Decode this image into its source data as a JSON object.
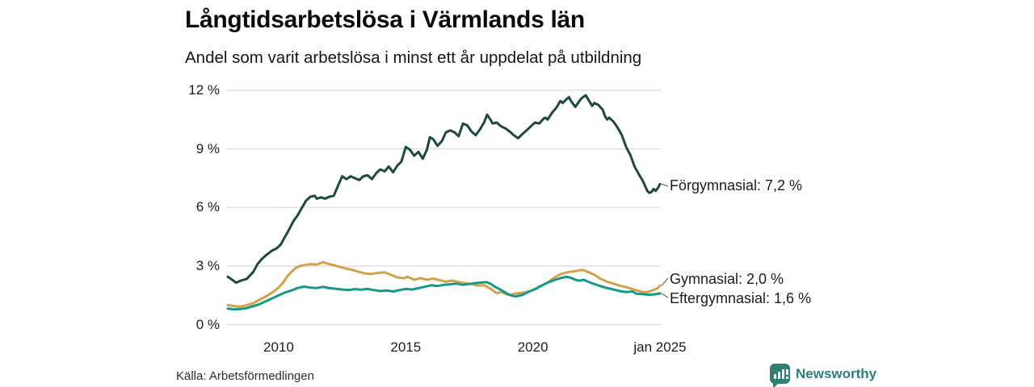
{
  "header": {
    "title": "Långtidsarbetslösa i Värmlands län",
    "subtitle": "Andel som varit arbetslösa i minst ett år uppdelat på utbildning"
  },
  "source": {
    "label": "Källa: Arbetsförmedlingen"
  },
  "branding": {
    "name": "Newsworthy",
    "color": "#2e7f74",
    "logo_icon": "bar-chart-speech-bubble-icon"
  },
  "chart_data": {
    "type": "line",
    "title": "Långtidsarbetslösa i Värmlands län",
    "subtitle": "Andel som varit arbetslösa i minst ett år uppdelat på utbildning",
    "xlabel": "",
    "ylabel": "",
    "xlim": [
      2008,
      2025
    ],
    "ylim": [
      0,
      12
    ],
    "grid": "horizontal-only",
    "gridline_color": "#e2e2e2",
    "legend_position": "end-of-line-labels-right",
    "x_ticks": [
      {
        "value": 2010,
        "label": "2010"
      },
      {
        "value": 2015,
        "label": "2015"
      },
      {
        "value": 2020,
        "label": "2020"
      },
      {
        "value": 2025,
        "label": "jan 2025"
      }
    ],
    "y_ticks": [
      {
        "value": 0,
        "label": "0 %"
      },
      {
        "value": 3,
        "label": "3 %"
      },
      {
        "value": 6,
        "label": "6 %"
      },
      {
        "value": 9,
        "label": "9 %"
      },
      {
        "value": 12,
        "label": "12 %"
      }
    ],
    "series": [
      {
        "name": "Förgymnasial",
        "label": "Förgymnasial: 7,2 %",
        "last_value": "7,2 %",
        "color": "#1e4a3b",
        "points": [
          [
            2008.0,
            2.45
          ],
          [
            2008.17,
            2.3
          ],
          [
            2008.33,
            2.15
          ],
          [
            2008.5,
            2.25
          ],
          [
            2008.75,
            2.35
          ],
          [
            2009.0,
            2.7
          ],
          [
            2009.17,
            3.1
          ],
          [
            2009.33,
            3.35
          ],
          [
            2009.5,
            3.55
          ],
          [
            2009.75,
            3.8
          ],
          [
            2009.92,
            3.9
          ],
          [
            2010.08,
            4.1
          ],
          [
            2010.25,
            4.5
          ],
          [
            2010.42,
            4.9
          ],
          [
            2010.58,
            5.3
          ],
          [
            2010.75,
            5.6
          ],
          [
            2010.92,
            6.0
          ],
          [
            2011.08,
            6.35
          ],
          [
            2011.25,
            6.55
          ],
          [
            2011.42,
            6.6
          ],
          [
            2011.5,
            6.45
          ],
          [
            2011.67,
            6.52
          ],
          [
            2011.83,
            6.45
          ],
          [
            2012.0,
            6.55
          ],
          [
            2012.17,
            6.6
          ],
          [
            2012.33,
            7.1
          ],
          [
            2012.5,
            7.6
          ],
          [
            2012.67,
            7.45
          ],
          [
            2012.83,
            7.6
          ],
          [
            2013.0,
            7.5
          ],
          [
            2013.17,
            7.4
          ],
          [
            2013.33,
            7.6
          ],
          [
            2013.5,
            7.65
          ],
          [
            2013.67,
            7.45
          ],
          [
            2013.83,
            7.75
          ],
          [
            2014.0,
            7.95
          ],
          [
            2014.17,
            7.85
          ],
          [
            2014.33,
            8.1
          ],
          [
            2014.5,
            7.8
          ],
          [
            2014.67,
            8.15
          ],
          [
            2014.83,
            8.35
          ],
          [
            2015.0,
            9.1
          ],
          [
            2015.17,
            8.95
          ],
          [
            2015.33,
            8.65
          ],
          [
            2015.5,
            8.85
          ],
          [
            2015.67,
            8.5
          ],
          [
            2015.83,
            8.95
          ],
          [
            2015.95,
            9.6
          ],
          [
            2016.08,
            9.5
          ],
          [
            2016.25,
            9.15
          ],
          [
            2016.42,
            9.4
          ],
          [
            2016.58,
            9.85
          ],
          [
            2016.75,
            9.95
          ],
          [
            2016.92,
            9.85
          ],
          [
            2017.08,
            9.65
          ],
          [
            2017.25,
            10.3
          ],
          [
            2017.42,
            10.2
          ],
          [
            2017.58,
            9.9
          ],
          [
            2017.75,
            9.7
          ],
          [
            2017.92,
            10.0
          ],
          [
            2018.08,
            10.35
          ],
          [
            2018.2,
            10.75
          ],
          [
            2018.33,
            10.5
          ],
          [
            2018.42,
            10.3
          ],
          [
            2018.58,
            10.35
          ],
          [
            2018.75,
            10.15
          ],
          [
            2018.92,
            10.05
          ],
          [
            2019.08,
            9.9
          ],
          [
            2019.25,
            9.7
          ],
          [
            2019.42,
            9.55
          ],
          [
            2019.58,
            9.75
          ],
          [
            2019.75,
            9.95
          ],
          [
            2019.92,
            10.15
          ],
          [
            2020.08,
            10.35
          ],
          [
            2020.25,
            10.3
          ],
          [
            2020.42,
            10.55
          ],
          [
            2020.5,
            10.6
          ],
          [
            2020.58,
            10.5
          ],
          [
            2020.75,
            10.85
          ],
          [
            2020.92,
            11.1
          ],
          [
            2021.08,
            11.45
          ],
          [
            2021.17,
            11.35
          ],
          [
            2021.33,
            11.55
          ],
          [
            2021.42,
            11.65
          ],
          [
            2021.5,
            11.45
          ],
          [
            2021.67,
            11.15
          ],
          [
            2021.83,
            11.45
          ],
          [
            2021.92,
            11.6
          ],
          [
            2022.08,
            11.75
          ],
          [
            2022.17,
            11.55
          ],
          [
            2022.33,
            11.2
          ],
          [
            2022.42,
            11.35
          ],
          [
            2022.58,
            11.25
          ],
          [
            2022.75,
            11.0
          ],
          [
            2022.83,
            10.7
          ],
          [
            2022.92,
            10.5
          ],
          [
            2023.0,
            10.6
          ],
          [
            2023.17,
            10.4
          ],
          [
            2023.33,
            10.1
          ],
          [
            2023.5,
            9.7
          ],
          [
            2023.67,
            9.1
          ],
          [
            2023.83,
            8.7
          ],
          [
            2024.0,
            8.1
          ],
          [
            2024.17,
            7.7
          ],
          [
            2024.33,
            7.35
          ],
          [
            2024.5,
            6.85
          ],
          [
            2024.58,
            6.75
          ],
          [
            2024.67,
            6.8
          ],
          [
            2024.75,
            6.95
          ],
          [
            2024.83,
            6.85
          ],
          [
            2024.92,
            7.0
          ],
          [
            2025.0,
            7.2
          ]
        ]
      },
      {
        "name": "Gymnasial",
        "label": "Gymnasial: 2,0 %",
        "last_value": "2,0 %",
        "color": "#d4a049",
        "points": [
          [
            2008.0,
            1.0
          ],
          [
            2008.25,
            0.95
          ],
          [
            2008.5,
            0.93
          ],
          [
            2008.75,
            1.0
          ],
          [
            2009.0,
            1.1
          ],
          [
            2009.25,
            1.28
          ],
          [
            2009.5,
            1.45
          ],
          [
            2009.75,
            1.65
          ],
          [
            2010.0,
            1.9
          ],
          [
            2010.17,
            2.15
          ],
          [
            2010.33,
            2.45
          ],
          [
            2010.5,
            2.7
          ],
          [
            2010.67,
            2.9
          ],
          [
            2010.83,
            3.0
          ],
          [
            2011.0,
            3.05
          ],
          [
            2011.25,
            3.1
          ],
          [
            2011.5,
            3.08
          ],
          [
            2011.75,
            3.2
          ],
          [
            2011.92,
            3.12
          ],
          [
            2012.17,
            3.05
          ],
          [
            2012.42,
            2.95
          ],
          [
            2012.67,
            2.87
          ],
          [
            2012.92,
            2.8
          ],
          [
            2013.17,
            2.7
          ],
          [
            2013.42,
            2.62
          ],
          [
            2013.67,
            2.6
          ],
          [
            2013.92,
            2.65
          ],
          [
            2014.17,
            2.68
          ],
          [
            2014.42,
            2.55
          ],
          [
            2014.67,
            2.42
          ],
          [
            2014.92,
            2.38
          ],
          [
            2015.08,
            2.45
          ],
          [
            2015.33,
            2.3
          ],
          [
            2015.58,
            2.38
          ],
          [
            2015.83,
            2.3
          ],
          [
            2016.08,
            2.36
          ],
          [
            2016.33,
            2.28
          ],
          [
            2016.58,
            2.2
          ],
          [
            2016.83,
            2.26
          ],
          [
            2017.08,
            2.18
          ],
          [
            2017.33,
            2.12
          ],
          [
            2017.58,
            2.08
          ],
          [
            2017.83,
            2.0
          ],
          [
            2018.08,
            2.02
          ],
          [
            2018.33,
            1.85
          ],
          [
            2018.58,
            1.6
          ],
          [
            2018.75,
            1.68
          ],
          [
            2018.92,
            1.58
          ],
          [
            2019.08,
            1.52
          ],
          [
            2019.33,
            1.6
          ],
          [
            2019.58,
            1.63
          ],
          [
            2019.83,
            1.7
          ],
          [
            2020.08,
            1.8
          ],
          [
            2020.33,
            1.98
          ],
          [
            2020.58,
            2.15
          ],
          [
            2020.83,
            2.4
          ],
          [
            2021.08,
            2.58
          ],
          [
            2021.33,
            2.68
          ],
          [
            2021.58,
            2.73
          ],
          [
            2021.83,
            2.78
          ],
          [
            2021.96,
            2.8
          ],
          [
            2022.17,
            2.7
          ],
          [
            2022.42,
            2.55
          ],
          [
            2022.67,
            2.35
          ],
          [
            2022.92,
            2.2
          ],
          [
            2023.17,
            2.1
          ],
          [
            2023.42,
            2.0
          ],
          [
            2023.67,
            1.92
          ],
          [
            2023.92,
            1.82
          ],
          [
            2024.17,
            1.72
          ],
          [
            2024.42,
            1.65
          ],
          [
            2024.58,
            1.7
          ],
          [
            2024.75,
            1.78
          ],
          [
            2024.92,
            1.88
          ],
          [
            2025.0,
            2.0
          ]
        ]
      },
      {
        "name": "Eftergymnasial",
        "label": "Eftergymnasial: 1,6 %",
        "last_value": "1,6 %",
        "color": "#14998a",
        "points": [
          [
            2008.0,
            0.82
          ],
          [
            2008.25,
            0.78
          ],
          [
            2008.5,
            0.8
          ],
          [
            2008.75,
            0.85
          ],
          [
            2009.0,
            0.95
          ],
          [
            2009.25,
            1.05
          ],
          [
            2009.5,
            1.2
          ],
          [
            2009.75,
            1.35
          ],
          [
            2010.0,
            1.5
          ],
          [
            2010.25,
            1.65
          ],
          [
            2010.5,
            1.75
          ],
          [
            2010.75,
            1.88
          ],
          [
            2011.0,
            1.95
          ],
          [
            2011.25,
            1.9
          ],
          [
            2011.5,
            1.88
          ],
          [
            2011.75,
            1.93
          ],
          [
            2012.0,
            1.87
          ],
          [
            2012.25,
            1.84
          ],
          [
            2012.5,
            1.8
          ],
          [
            2012.75,
            1.78
          ],
          [
            2013.0,
            1.82
          ],
          [
            2013.25,
            1.79
          ],
          [
            2013.5,
            1.83
          ],
          [
            2013.75,
            1.77
          ],
          [
            2014.0,
            1.72
          ],
          [
            2014.25,
            1.75
          ],
          [
            2014.5,
            1.7
          ],
          [
            2014.75,
            1.77
          ],
          [
            2015.0,
            1.83
          ],
          [
            2015.25,
            1.8
          ],
          [
            2015.5,
            1.87
          ],
          [
            2015.75,
            1.94
          ],
          [
            2016.0,
            2.02
          ],
          [
            2016.25,
            1.98
          ],
          [
            2016.5,
            2.04
          ],
          [
            2016.75,
            2.07
          ],
          [
            2017.0,
            2.1
          ],
          [
            2017.25,
            2.04
          ],
          [
            2017.5,
            2.08
          ],
          [
            2017.75,
            2.13
          ],
          [
            2018.0,
            2.16
          ],
          [
            2018.17,
            2.18
          ],
          [
            2018.33,
            2.1
          ],
          [
            2018.5,
            1.95
          ],
          [
            2018.75,
            1.78
          ],
          [
            2019.0,
            1.58
          ],
          [
            2019.17,
            1.48
          ],
          [
            2019.33,
            1.45
          ],
          [
            2019.58,
            1.52
          ],
          [
            2019.83,
            1.68
          ],
          [
            2020.08,
            1.82
          ],
          [
            2020.33,
            2.0
          ],
          [
            2020.58,
            2.15
          ],
          [
            2020.83,
            2.28
          ],
          [
            2021.08,
            2.38
          ],
          [
            2021.33,
            2.45
          ],
          [
            2021.5,
            2.4
          ],
          [
            2021.67,
            2.3
          ],
          [
            2021.83,
            2.25
          ],
          [
            2022.0,
            2.3
          ],
          [
            2022.17,
            2.2
          ],
          [
            2022.42,
            2.08
          ],
          [
            2022.67,
            1.97
          ],
          [
            2022.92,
            1.88
          ],
          [
            2023.17,
            1.8
          ],
          [
            2023.42,
            1.72
          ],
          [
            2023.67,
            1.67
          ],
          [
            2023.92,
            1.7
          ],
          [
            2024.08,
            1.58
          ],
          [
            2024.33,
            1.56
          ],
          [
            2024.58,
            1.53
          ],
          [
            2024.83,
            1.56
          ],
          [
            2025.0,
            1.6
          ]
        ]
      }
    ]
  }
}
